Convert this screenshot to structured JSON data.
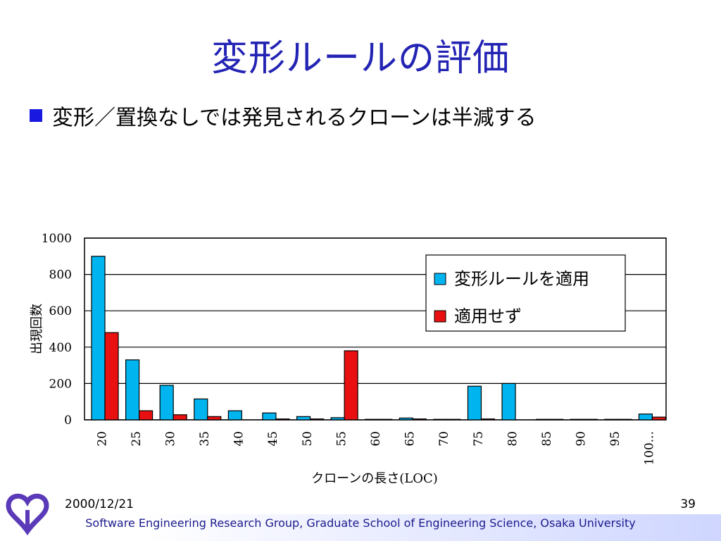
{
  "slide": {
    "title": "変形ルールの評価",
    "bullet": "変形／置換なしでは発見されるクローンは半減する",
    "date": "2000/12/21",
    "page": "39",
    "footer": "Software Engineering Research Group, Graduate School of Engineering Science, Osaka University"
  },
  "colors": {
    "title": "#2323b4",
    "series1": "#00b4f0",
    "series2": "#e81010",
    "footer_text": "#1a1a8c"
  },
  "chart_data": {
    "type": "bar",
    "xlabel": "クローンの長さ(LOC)",
    "ylabel": "出現回数",
    "ylim": [
      0,
      1000
    ],
    "yticks": [
      0,
      200,
      400,
      600,
      800,
      1000
    ],
    "grid": true,
    "legend_position": "top-right",
    "categories": [
      "20",
      "25",
      "30",
      "35",
      "40",
      "45",
      "50",
      "55",
      "60",
      "65",
      "70",
      "75",
      "80",
      "85",
      "90",
      "95",
      "100..."
    ],
    "series": [
      {
        "name": "変形ルールを適用",
        "values": [
          900,
          330,
          190,
          115,
          50,
          38,
          18,
          12,
          3,
          10,
          3,
          185,
          200,
          3,
          3,
          3,
          32
        ]
      },
      {
        "name": "適用せず",
        "values": [
          480,
          50,
          28,
          18,
          0,
          5,
          5,
          380,
          3,
          5,
          3,
          5,
          0,
          3,
          3,
          3,
          15
        ]
      }
    ]
  }
}
